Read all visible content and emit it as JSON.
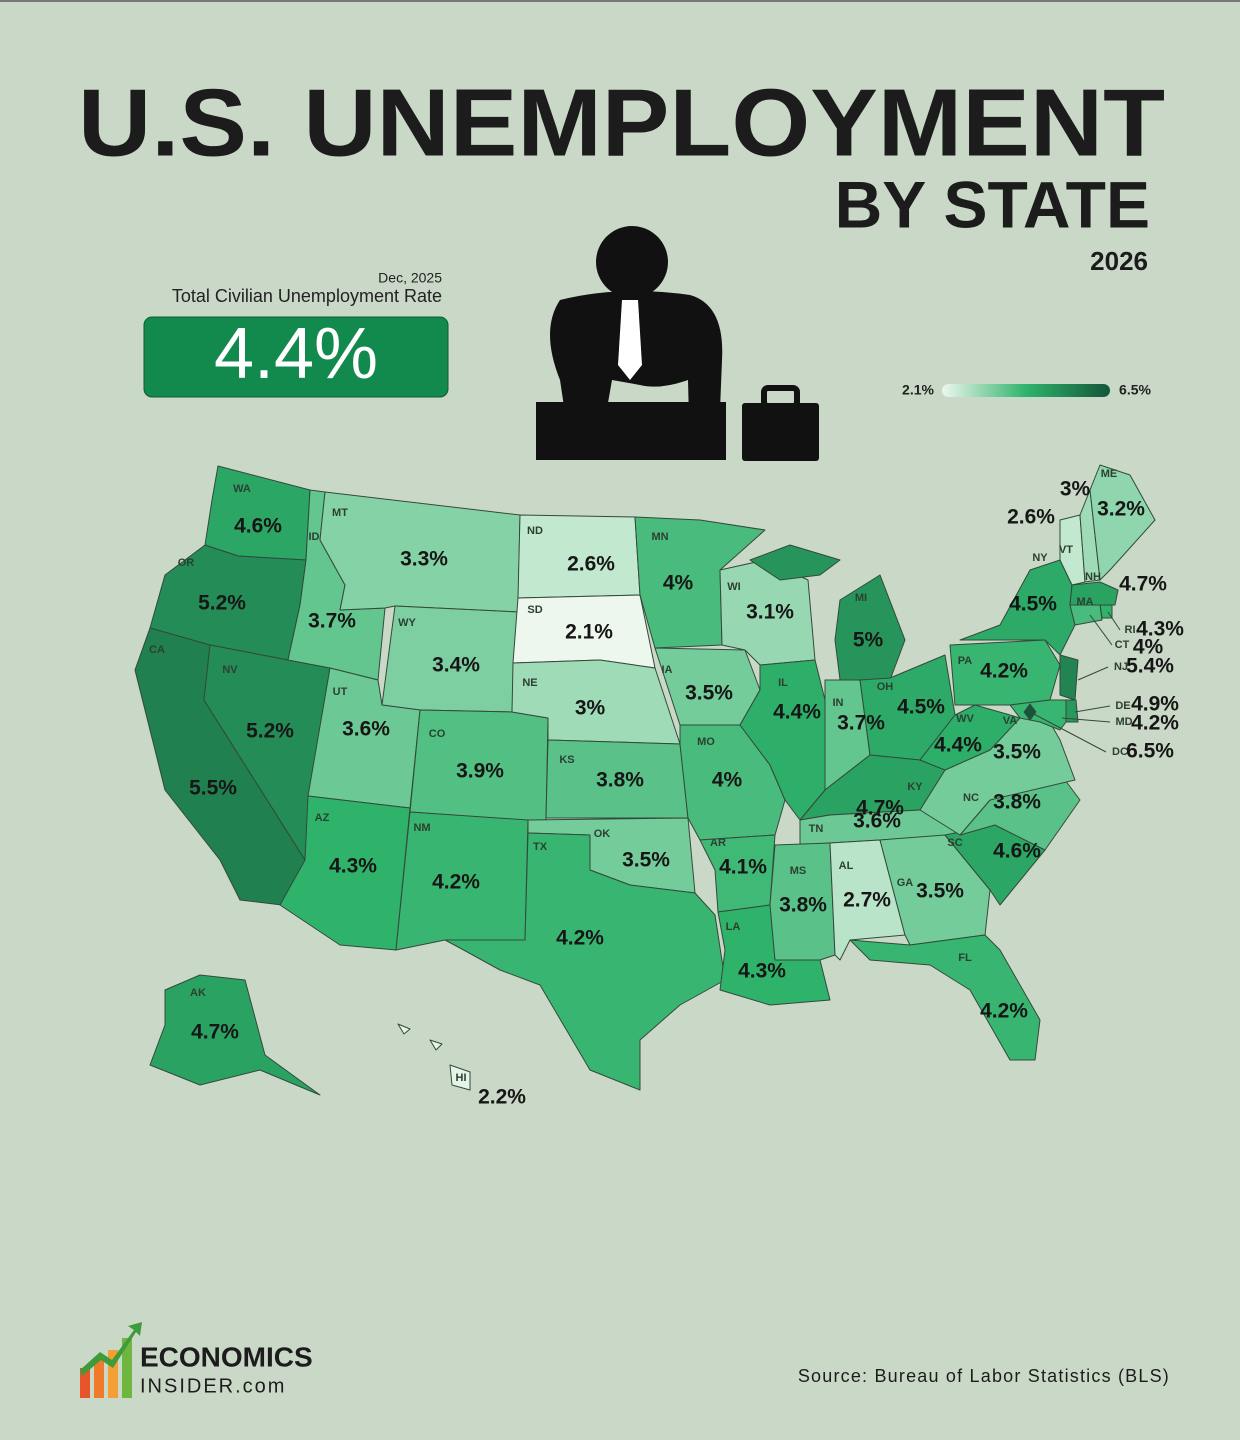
{
  "chart_data": {
    "type": "choropleth",
    "title": "U.S. UNEMPLOYMENT",
    "subtitle": "BY STATE",
    "year": "2026",
    "headline": {
      "date": "Dec, 2025",
      "label": "Total Civilian Unemployment Rate",
      "value": 4.4,
      "value_label": "4.4%"
    },
    "categories": [
      "WA",
      "OR",
      "CA",
      "NV",
      "ID",
      "MT",
      "WY",
      "UT",
      "CO",
      "AZ",
      "NM",
      "ND",
      "SD",
      "NE",
      "KS",
      "OK",
      "TX",
      "MN",
      "IA",
      "MO",
      "AR",
      "LA",
      "WI",
      "IL",
      "MI",
      "IN",
      "OH",
      "KY",
      "TN",
      "MS",
      "AL",
      "GA",
      "FL",
      "SC",
      "NC",
      "VA",
      "WV",
      "PA",
      "NY",
      "NJ",
      "DE",
      "MD",
      "DC",
      "VT",
      "NH",
      "ME",
      "MA",
      "RI",
      "CT",
      "AK",
      "HI"
    ],
    "values": [
      4.6,
      5.2,
      5.5,
      5.2,
      3.7,
      3.3,
      3.4,
      3.6,
      3.9,
      4.3,
      4.2,
      2.6,
      2.1,
      3,
      3.8,
      3.5,
      4.2,
      4,
      3.5,
      4,
      4.1,
      4.3,
      3.1,
      4.4,
      5,
      3.7,
      4.5,
      4.7,
      3.6,
      3.8,
      2.7,
      3.5,
      4.2,
      4.6,
      3.8,
      3.5,
      4.4,
      4.2,
      4.5,
      5.4,
      4.9,
      4.2,
      6.5,
      2.6,
      3,
      3.2,
      4.7,
      4.3,
      4,
      4.7,
      2.2
    ],
    "value_labels": [
      "4.6%",
      "5.2%",
      "5.5%",
      "5.2%",
      "3.7%",
      "3.3%",
      "3.4%",
      "3.6%",
      "3.9%",
      "4.3%",
      "4.2%",
      "2.6%",
      "2.1%",
      "3%",
      "3.8%",
      "3.5%",
      "4.2%",
      "4%",
      "3.5%",
      "4%",
      "4.1%",
      "4.3%",
      "3.1%",
      "4.4%",
      "5%",
      "3.7%",
      "4.5%",
      "4.7%",
      "3.6%",
      "3.8%",
      "2.7%",
      "3.5%",
      "4.2%",
      "4.6%",
      "3.8%",
      "3.5%",
      "4.4%",
      "4.2%",
      "4.5%",
      "5.4%",
      "4.9%",
      "4.2%",
      "6.5%",
      "2.6%",
      "3%",
      "3.2%",
      "4.7%",
      "4.3%",
      "4%",
      "4.7%",
      "2.2%"
    ],
    "colorscale": {
      "range": [
        {
          "value": 2.1,
          "label": "2.1%"
        },
        {
          "value": 6.5,
          "label": "6.5%"
        }
      ],
      "colors": [
        "#eef7ee",
        "#2fb36b",
        "#15553a"
      ]
    },
    "source": "Source: Bureau of Labor Statistics (BLS)",
    "logo": {
      "line1": "ECONOMICS",
      "line2": "INSIDER.com"
    }
  }
}
